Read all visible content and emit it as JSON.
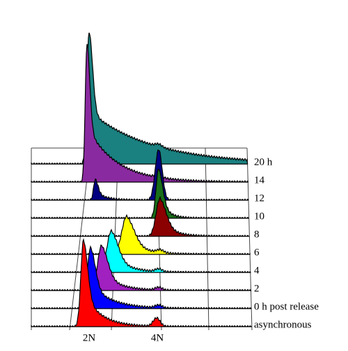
{
  "rows": [
    {
      "label": "asynchronous",
      "color": "#ff0000"
    },
    {
      "label": "0 h post release",
      "color": "#0000ff"
    },
    {
      "label": "2",
      "color": "#a020c0"
    },
    {
      "label": "4",
      "color": "#00ffff"
    },
    {
      "label": "6",
      "color": "#ffff00"
    },
    {
      "label": "8",
      "color": "#8b0000"
    },
    {
      "label": "10",
      "color": "#1a6e1a"
    },
    {
      "label": "12",
      "color": "#000080"
    },
    {
      "label": "14",
      "color": "#8a2aa0"
    },
    {
      "label": "20 h",
      "color": "#1a8080"
    }
  ],
  "x_markers": [
    "2N",
    "4N"
  ]
}
